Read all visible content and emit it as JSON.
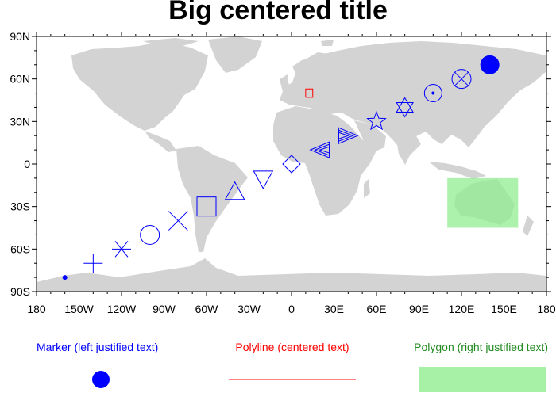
{
  "title": "Big centered title",
  "chart_data": {
    "type": "map",
    "projection": "cylindrical-equidistant",
    "xlim": [
      -180,
      180
    ],
    "ylim": [
      -90,
      90
    ],
    "x_ticks": [
      {
        "value": -180,
        "label": "180"
      },
      {
        "value": -150,
        "label": "150W"
      },
      {
        "value": -120,
        "label": "120W"
      },
      {
        "value": -90,
        "label": "90W"
      },
      {
        "value": -60,
        "label": "60W"
      },
      {
        "value": -30,
        "label": "30W"
      },
      {
        "value": 0,
        "label": "0"
      },
      {
        "value": 30,
        "label": "30E"
      },
      {
        "value": 60,
        "label": "60E"
      },
      {
        "value": 90,
        "label": "90E"
      },
      {
        "value": 120,
        "label": "120E"
      },
      {
        "value": 150,
        "label": "150E"
      },
      {
        "value": 180,
        "label": "180"
      }
    ],
    "y_ticks": [
      {
        "value": 90,
        "label": "90N"
      },
      {
        "value": 60,
        "label": "60N"
      },
      {
        "value": 30,
        "label": "30N"
      },
      {
        "value": 0,
        "label": "0"
      },
      {
        "value": -30,
        "label": "30S"
      },
      {
        "value": -60,
        "label": "60S"
      },
      {
        "value": -90,
        "label": "90S"
      }
    ],
    "markers": [
      {
        "lon": -160,
        "lat": -80,
        "symbol": "small-dot"
      },
      {
        "lon": -140,
        "lat": -70,
        "symbol": "plus"
      },
      {
        "lon": -120,
        "lat": -60,
        "symbol": "asterisk"
      },
      {
        "lon": -100,
        "lat": -50,
        "symbol": "circle"
      },
      {
        "lon": -80,
        "lat": -40,
        "symbol": "cross"
      },
      {
        "lon": -60,
        "lat": -30,
        "symbol": "square"
      },
      {
        "lon": -40,
        "lat": -20,
        "symbol": "triangle-up"
      },
      {
        "lon": -20,
        "lat": -10,
        "symbol": "triangle-down"
      },
      {
        "lon": 0,
        "lat": 0,
        "symbol": "diamond"
      },
      {
        "lon": 20,
        "lat": 10,
        "symbol": "arrow-left"
      },
      {
        "lon": 40,
        "lat": 20,
        "symbol": "arrow-right"
      },
      {
        "lon": 60,
        "lat": 30,
        "symbol": "star-5"
      },
      {
        "lon": 80,
        "lat": 40,
        "symbol": "star-6"
      },
      {
        "lon": 100,
        "lat": 50,
        "symbol": "circle-dot"
      },
      {
        "lon": 120,
        "lat": 60,
        "symbol": "circle-x"
      },
      {
        "lon": 140,
        "lat": 70,
        "symbol": "filled-circle"
      }
    ],
    "polyline": {
      "lon": [
        10,
        15,
        15,
        10,
        10
      ],
      "lat": [
        47,
        47,
        53,
        53,
        47
      ],
      "color": "#ff0000"
    },
    "polygon": {
      "lon": [
        110,
        160,
        160,
        110
      ],
      "lat": [
        -45,
        -45,
        -10,
        -10
      ],
      "color": "#90ee90"
    },
    "colors": {
      "land": "#d3d3d3",
      "marker": "#0000ff",
      "polyline": "#ff0000",
      "polygon": "#90ee90"
    }
  },
  "legend": {
    "marker_text": "Marker (left justified text)",
    "polyline_text": "Polyline (centered text)",
    "polygon_text": "Polygon (right justified text)"
  }
}
